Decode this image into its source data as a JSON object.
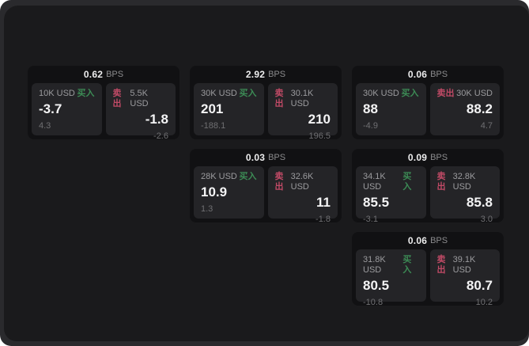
{
  "labels": {
    "bps_unit": "BPS",
    "buy": "买入",
    "sell": "卖出"
  },
  "colors": {
    "buy_green": "#3c8b55",
    "sell_red": "#c04a66",
    "card_bg": "#111113",
    "panel_bg": "#242427",
    "window_bg": "#1a1a1c",
    "frame_bg": "#2a2a2d"
  },
  "cards": [
    {
      "bps_value": "0.62",
      "buy": {
        "notional": "10K USD",
        "value": "-3.7",
        "delta": "4.3"
      },
      "sell": {
        "notional": "5.5K USD",
        "value": "-1.8",
        "delta": "-2.6"
      }
    },
    {
      "bps_value": "2.92",
      "buy": {
        "notional": "30K USD",
        "value": "201",
        "delta": "-188.1"
      },
      "sell": {
        "notional": "30.1K USD",
        "value": "210",
        "delta": "196.5"
      }
    },
    {
      "bps_value": "0.06",
      "buy": {
        "notional": "30K USD",
        "value": "88",
        "delta": "-4.9"
      },
      "sell": {
        "notional": "30K USD",
        "value": "88.2",
        "delta": "4.7"
      }
    },
    {
      "bps_value": "0.03",
      "buy": {
        "notional": "28K USD",
        "value": "10.9",
        "delta": "1.3"
      },
      "sell": {
        "notional": "32.6K USD",
        "value": "11",
        "delta": "-1.8"
      }
    },
    {
      "bps_value": "0.09",
      "buy": {
        "notional": "34.1K USD",
        "value": "85.5",
        "delta": "-3.1"
      },
      "sell": {
        "notional": "32.8K USD",
        "value": "85.8",
        "delta": "3.0"
      }
    },
    {
      "bps_value": "0.06",
      "buy": {
        "notional": "31.8K USD",
        "value": "80.5",
        "delta": "-10.8"
      },
      "sell": {
        "notional": "39.1K USD",
        "value": "80.7",
        "delta": "10.2"
      }
    }
  ]
}
